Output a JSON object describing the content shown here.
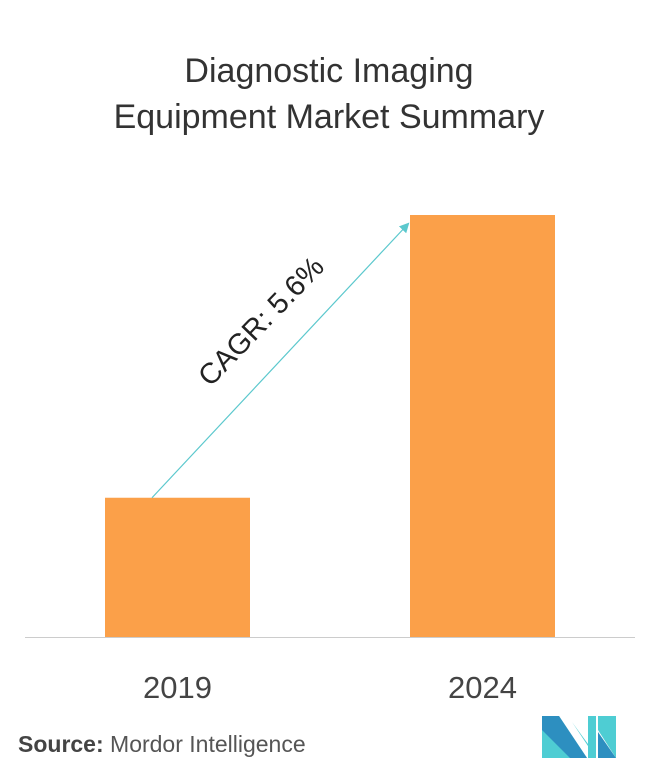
{
  "title_line1": "Diagnostic Imaging",
  "title_line2": "Equipment Market Summary",
  "chart_data": {
    "type": "bar",
    "title": "Diagnostic Imaging Equipment Market Summary",
    "categories": [
      "2019",
      "2024"
    ],
    "values": [
      33,
      100
    ],
    "ylim": [
      0,
      100
    ],
    "grid": false,
    "bar_color": "#FBA049",
    "annotation": "CAGR: 5.6%",
    "arrow_color": "#5BC8CD"
  },
  "source_label": "Source:",
  "source_text": "Mordor Intelligence",
  "colors": {
    "logo_dark": "#2D8FC0",
    "logo_light": "#4ECDD3"
  }
}
